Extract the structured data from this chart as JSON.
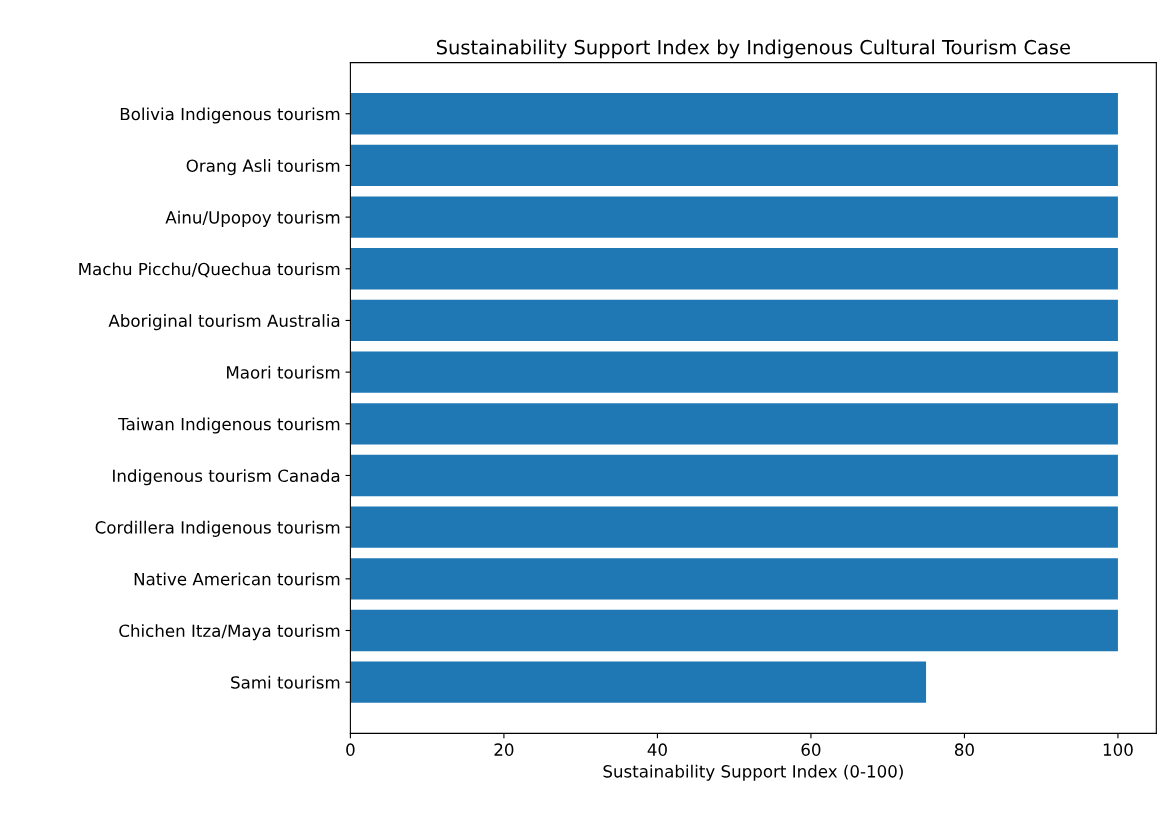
{
  "chart_data": {
    "type": "bar",
    "orientation": "horizontal",
    "title": "Sustainability Support Index by Indigenous Cultural Tourism Case",
    "xlabel": "Sustainability Support Index (0-100)",
    "categories": [
      "Bolivia Indigenous tourism",
      "Orang Asli tourism",
      "Ainu/Upopoy tourism",
      "Machu Picchu/Quechua tourism",
      "Aboriginal tourism Australia",
      "Maori tourism",
      "Taiwan Indigenous tourism",
      "Indigenous tourism Canada",
      "Cordillera Indigenous tourism",
      "Native American tourism",
      "Chichen Itza/Maya tourism",
      "Sami tourism"
    ],
    "values": [
      100,
      100,
      100,
      100,
      100,
      100,
      100,
      100,
      100,
      100,
      100,
      75
    ],
    "color": "#1f77b4",
    "xlim": [
      0,
      105
    ],
    "xticks": [
      0,
      20,
      40,
      60,
      80,
      100
    ],
    "grid": false
  }
}
